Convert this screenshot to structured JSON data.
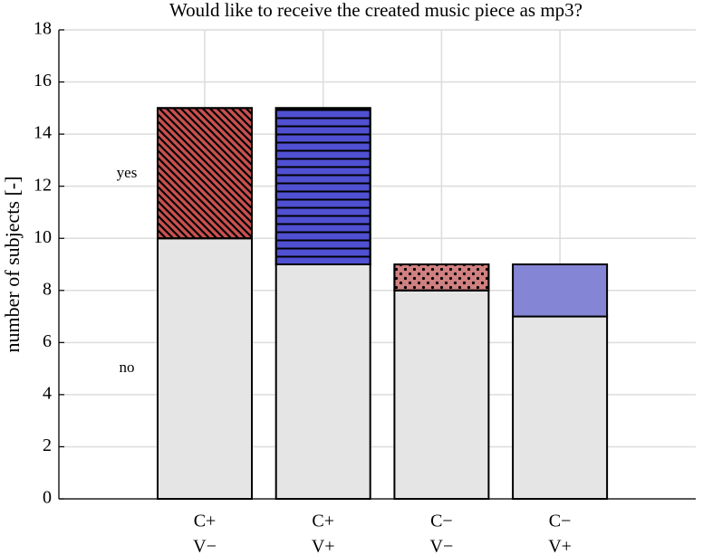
{
  "chart_data": {
    "type": "stacked-bar",
    "title": "Would like to receive the created music piece as mp3?",
    "y_label": "number of subjects [-]",
    "categories": [
      [
        "C+",
        "V−"
      ],
      [
        "C+",
        "V+"
      ],
      [
        "C−",
        "V−"
      ],
      [
        "C−",
        "V+"
      ]
    ],
    "series": [
      {
        "name": "no",
        "color": "#e5e5e5",
        "values": [
          10,
          9,
          8,
          7
        ]
      },
      {
        "name": "yes",
        "colors": [
          "#c8504f",
          "#5050d2",
          "#d08080",
          "#8585d5"
        ],
        "hatches": [
          "diagonal",
          "horizontal",
          "dots",
          "none"
        ],
        "values": [
          5,
          6,
          1,
          2
        ]
      }
    ],
    "ylim": [
      0,
      18
    ],
    "yticks": [
      0,
      2,
      4,
      6,
      8,
      10,
      12,
      14,
      16,
      18
    ],
    "grid": true
  }
}
